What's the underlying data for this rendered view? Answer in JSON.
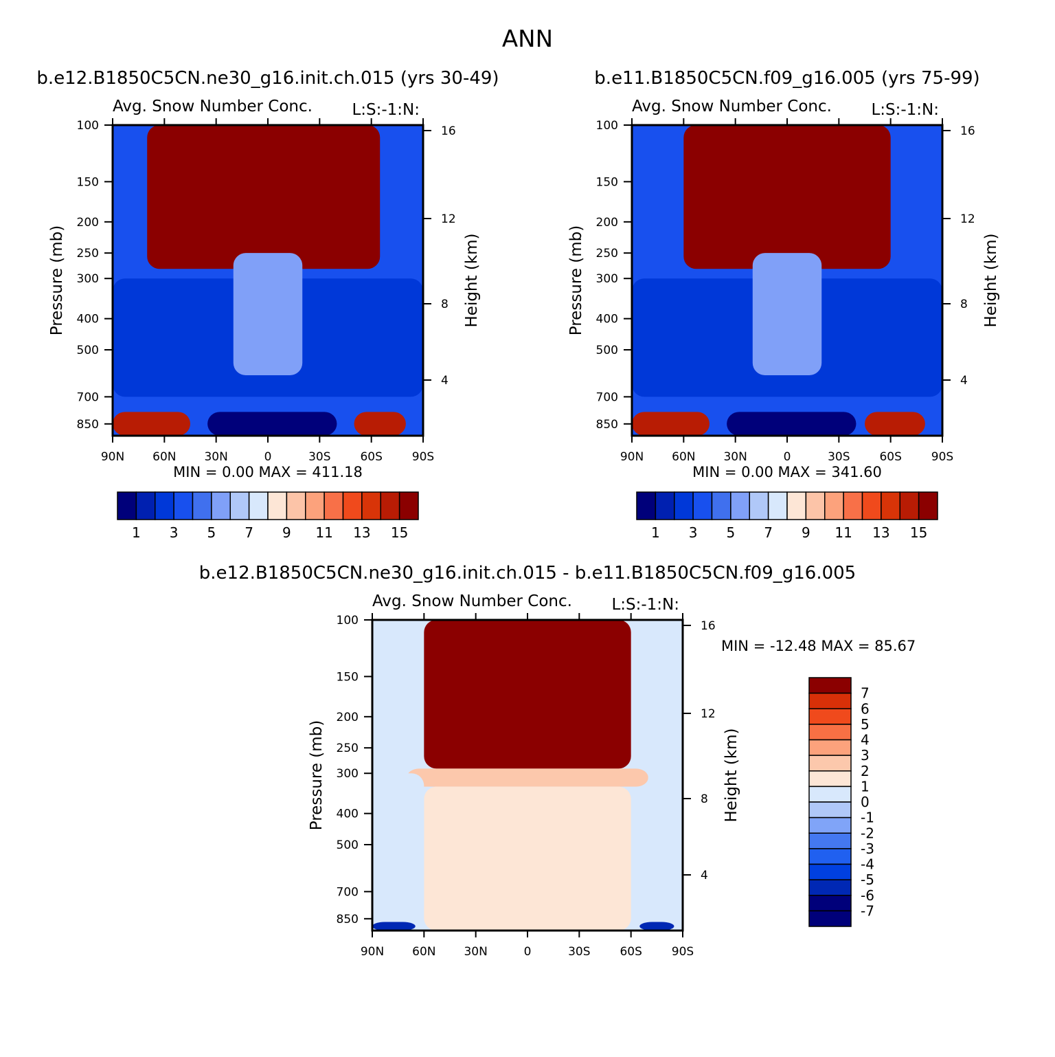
{
  "figure": {
    "title": "ANN"
  },
  "colors": {
    "control_levels": [
      "#00007a",
      "#0020b0",
      "#0038d8",
      "#1850ee",
      "#4070ee",
      "#80a0f8",
      "#b0c8f8",
      "#d8e8fc",
      "#fde6d6",
      "#fcc4a8",
      "#fca27c",
      "#f87048",
      "#f04a1c",
      "#d83408",
      "#b81c04",
      "#8b0000"
    ],
    "diff_levels": [
      "#00007a",
      "#0028b4",
      "#0040e0",
      "#2060f0",
      "#4478f0",
      "#80a4f8",
      "#b0c8f8",
      "#d8e8fc",
      "#fde6d6",
      "#fcc8ac",
      "#fca27c",
      "#f87044",
      "#f04a1c",
      "#d83008",
      "#8b0000"
    ]
  },
  "chart_data": [
    {
      "type": "heatmap",
      "id": "panel1",
      "case_title": "b.e12.B1850C5CN.ne30_g16.init.ch.015 (yrs 30-49)",
      "variable": "Avg. Snow Number Conc.",
      "units": "L:S:-1:N:",
      "xlabel": "",
      "ylabel": "Pressure (mb)",
      "ylabel_right": "Height (km)",
      "x_ticks": [
        "90N",
        "60N",
        "30N",
        "0",
        "30S",
        "60S",
        "90S"
      ],
      "x_range": [
        90,
        -90
      ],
      "y_ticks": [
        100,
        150,
        200,
        250,
        300,
        400,
        500,
        700,
        850
      ],
      "y_range": [
        100,
        925
      ],
      "height_ticks": [
        16,
        12,
        8,
        4
      ],
      "min_label": "MIN =",
      "min_value": "0.00",
      "max_label": "MAX =",
      "max_value": "411.18",
      "colorbar_labels": [
        "1",
        "3",
        "5",
        "7",
        "9",
        "11",
        "13",
        "15"
      ],
      "colorbar_orientation": "horizontal",
      "bands": [
        {
          "layer": "stratosphere-tropopause",
          "lat_range": [
            70,
            -65
          ],
          "pressure_range": [
            100,
            280
          ],
          "level_index": 15
        },
        {
          "layer": "mid-troposphere",
          "lat_range": [
            90,
            -90
          ],
          "pressure_range": [
            300,
            700
          ],
          "level_index": 2
        },
        {
          "layer": "tropical-updraft",
          "lat_range": [
            20,
            -20
          ],
          "pressure_range": [
            250,
            600
          ],
          "level_index": 5
        },
        {
          "layer": "polar-lower-north",
          "lat_range": [
            90,
            45
          ],
          "pressure_range": [
            780,
            925
          ],
          "level_index": 14
        },
        {
          "layer": "polar-lower-south",
          "lat_range": [
            -50,
            -80
          ],
          "pressure_range": [
            780,
            925
          ],
          "level_index": 14
        },
        {
          "layer": "tropical-lower",
          "lat_range": [
            35,
            -40
          ],
          "pressure_range": [
            780,
            925
          ],
          "level_index": 0
        }
      ]
    },
    {
      "type": "heatmap",
      "id": "panel2",
      "case_title": "b.e11.B1850C5CN.f09_g16.005 (yrs 75-99)",
      "variable": "Avg. Snow Number Conc.",
      "units": "L:S:-1:N:",
      "xlabel": "",
      "ylabel": "Pressure (mb)",
      "ylabel_right": "Height (km)",
      "x_ticks": [
        "90N",
        "60N",
        "30N",
        "0",
        "30S",
        "60S",
        "90S"
      ],
      "x_range": [
        90,
        -90
      ],
      "y_ticks": [
        100,
        150,
        200,
        250,
        300,
        400,
        500,
        700,
        850
      ],
      "y_range": [
        100,
        925
      ],
      "height_ticks": [
        16,
        12,
        8,
        4
      ],
      "min_label": "MIN =",
      "min_value": "0.00",
      "max_label": "MAX =",
      "max_value": "341.60",
      "colorbar_labels": [
        "1",
        "3",
        "5",
        "7",
        "9",
        "11",
        "13",
        "15"
      ],
      "colorbar_orientation": "horizontal",
      "bands": [
        {
          "layer": "stratosphere-tropopause",
          "lat_range": [
            60,
            -60
          ],
          "pressure_range": [
            100,
            280
          ],
          "level_index": 15
        },
        {
          "layer": "mid-troposphere",
          "lat_range": [
            90,
            -90
          ],
          "pressure_range": [
            300,
            700
          ],
          "level_index": 2
        },
        {
          "layer": "tropical-updraft",
          "lat_range": [
            20,
            -20
          ],
          "pressure_range": [
            250,
            600
          ],
          "level_index": 5
        },
        {
          "layer": "polar-lower-north",
          "lat_range": [
            90,
            45
          ],
          "pressure_range": [
            780,
            925
          ],
          "level_index": 14
        },
        {
          "layer": "polar-lower-south",
          "lat_range": [
            -45,
            -80
          ],
          "pressure_range": [
            780,
            925
          ],
          "level_index": 14
        },
        {
          "layer": "tropical-lower",
          "lat_range": [
            35,
            -40
          ],
          "pressure_range": [
            780,
            925
          ],
          "level_index": 0
        }
      ]
    },
    {
      "type": "heatmap",
      "id": "panel3",
      "case_title": "b.e12.B1850C5CN.ne30_g16.init.ch.015 - b.e11.B1850C5CN.f09_g16.005",
      "variable": "Avg. Snow Number Conc.",
      "units": "L:S:-1:N:",
      "xlabel": "",
      "ylabel": "Pressure (mb)",
      "ylabel_right": "Height (km)",
      "x_ticks": [
        "90N",
        "60N",
        "30N",
        "0",
        "30S",
        "60S",
        "90S"
      ],
      "x_range": [
        90,
        -90
      ],
      "y_ticks": [
        100,
        150,
        200,
        250,
        300,
        400,
        500,
        700,
        850
      ],
      "y_range": [
        100,
        925
      ],
      "height_ticks": [
        16,
        12,
        8,
        4
      ],
      "min_label": "MIN =",
      "min_value": "-12.48",
      "max_label": "MAX =",
      "max_value": "85.67",
      "colorbar_labels": [
        "7",
        "6",
        "5",
        "4",
        "3",
        "2",
        "1",
        "0",
        "-1",
        "-2",
        "-3",
        "-4",
        "-5",
        "-6",
        "-7"
      ],
      "colorbar_orientation": "vertical",
      "bands": [
        {
          "layer": "stratosphere-tropopause",
          "lat_range": [
            60,
            -60
          ],
          "pressure_range": [
            100,
            290
          ],
          "level_index": 14
        },
        {
          "layer": "upper-troposphere",
          "lat_range": [
            70,
            -70
          ],
          "pressure_range": [
            290,
            330
          ],
          "level_index": 9
        },
        {
          "layer": "mid-troposphere",
          "lat_range": [
            60,
            -60
          ],
          "pressure_range": [
            330,
            925
          ],
          "level_index": 8
        },
        {
          "layer": "polar-north",
          "lat_range": [
            90,
            60
          ],
          "pressure_range": [
            300,
            850
          ],
          "level_index": 7
        },
        {
          "layer": "polar-south",
          "lat_range": [
            -70,
            -90
          ],
          "pressure_range": [
            100,
            850
          ],
          "level_index": 7
        },
        {
          "layer": "polar-lower-north",
          "lat_range": [
            90,
            65
          ],
          "pressure_range": [
            870,
            925
          ],
          "level_index": 1
        },
        {
          "layer": "polar-lower-south",
          "lat_range": [
            -65,
            -85
          ],
          "pressure_range": [
            870,
            925
          ],
          "level_index": 1
        }
      ]
    }
  ]
}
